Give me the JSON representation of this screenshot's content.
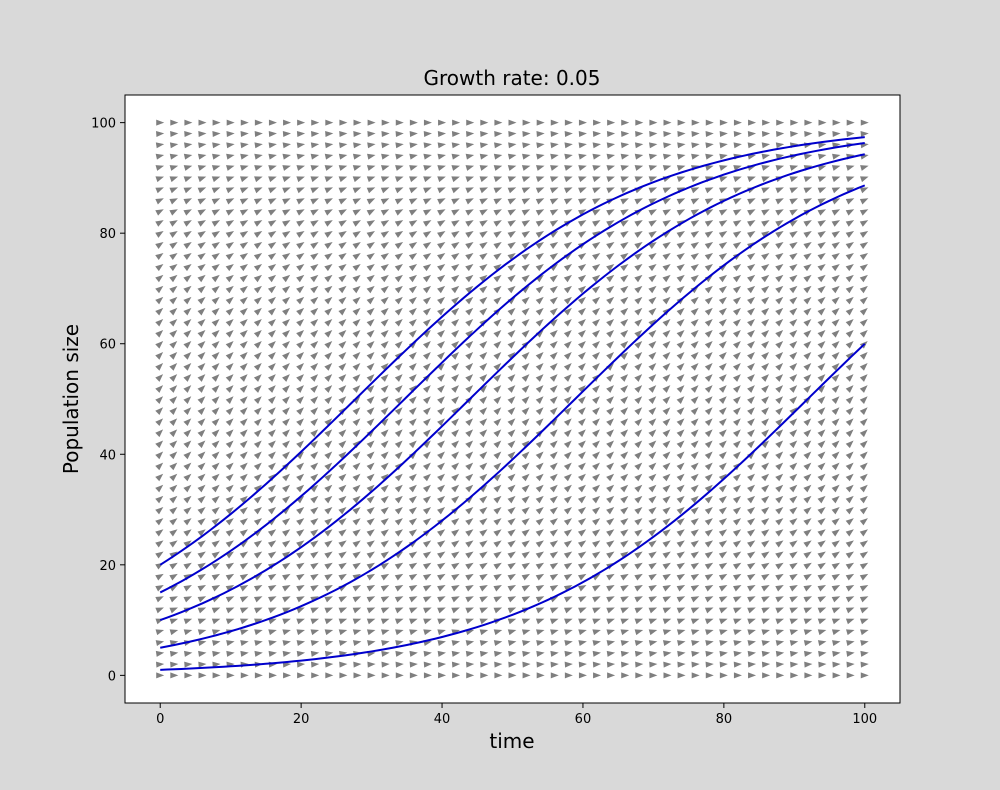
{
  "chart_data": {
    "type": "line",
    "title": "Growth rate: 0.05",
    "xlabel": "time",
    "ylabel": "Population size",
    "xlim": [
      -5,
      105
    ],
    "ylim": [
      -5,
      105
    ],
    "xticks": [
      0,
      20,
      40,
      60,
      80,
      100
    ],
    "yticks": [
      0,
      20,
      40,
      60,
      80,
      100
    ],
    "grid": false,
    "colors": {
      "figure_background": "#d9d9d9",
      "plot_background": "#ffffff",
      "series": "#0000cc",
      "field": "#7f7f7f"
    },
    "model": {
      "equation": "logistic",
      "growth_rate": 0.05,
      "carrying_capacity": 100
    },
    "direction_field": {
      "t_range": [
        0,
        100
      ],
      "t_step": 2,
      "y_range": [
        0,
        100
      ],
      "y_step": 2
    },
    "series": [
      {
        "initial_value": 1
      },
      {
        "initial_value": 5
      },
      {
        "initial_value": 10
      },
      {
        "initial_value": 15
      },
      {
        "initial_value": 20
      }
    ]
  }
}
